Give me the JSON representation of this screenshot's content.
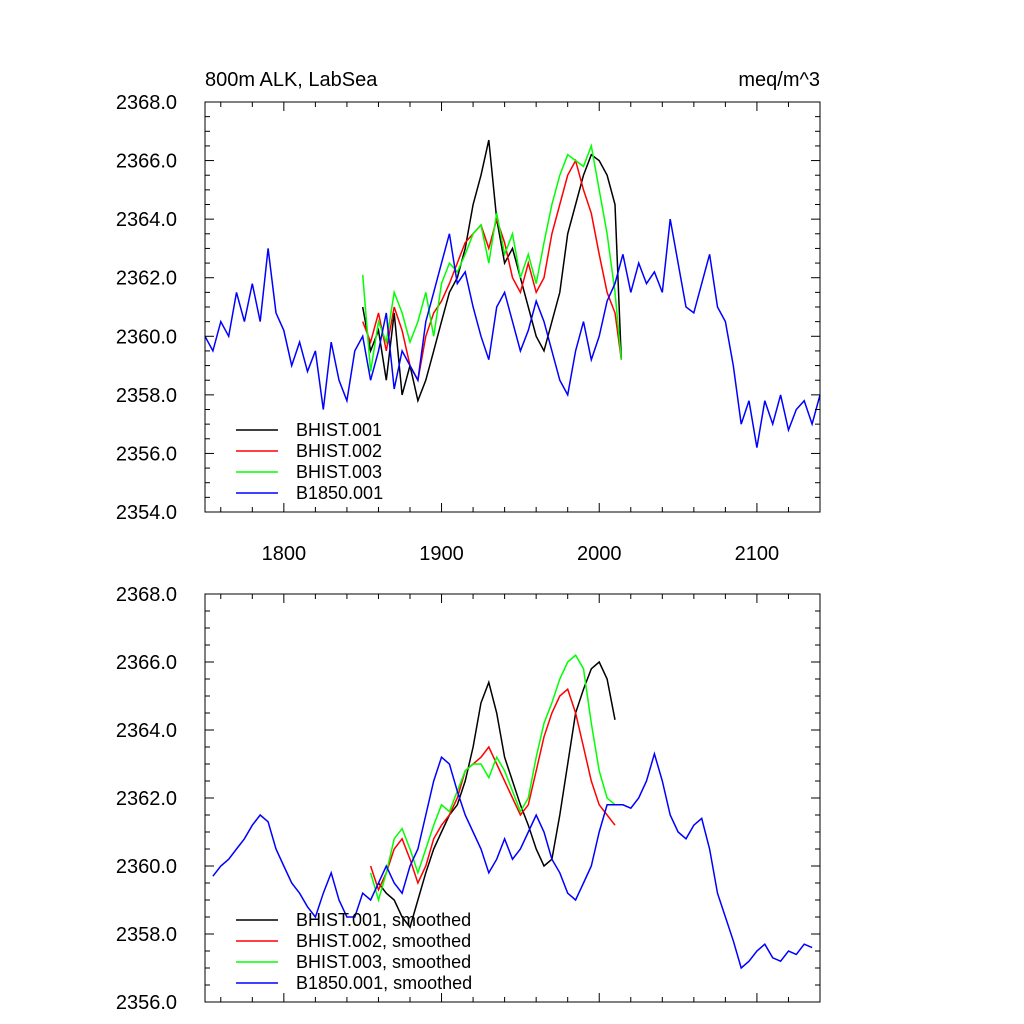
{
  "chart_data": [
    {
      "type": "line",
      "title": "800m ALK, LabSea",
      "units": "meq/m^3",
      "xlim": [
        1750,
        2140
      ],
      "ylim": [
        2354,
        2368
      ],
      "xticks": [
        1800,
        1900,
        2000,
        2100
      ],
      "yticks": [
        2354.0,
        2356.0,
        2358.0,
        2360.0,
        2362.0,
        2364.0,
        2366.0,
        2368.0
      ],
      "xtick_labels": [
        "1800",
        "1900",
        "2000",
        "2100"
      ],
      "ytick_labels": [
        "2354.0",
        "2356.0",
        "2358.0",
        "2360.0",
        "2362.0",
        "2364.0",
        "2366.0",
        "2368.0"
      ],
      "legend_position": "lower-left",
      "series": [
        {
          "name": "BHIST.001",
          "color": "#000000",
          "x": [
            1850,
            1855,
            1860,
            1865,
            1870,
            1875,
            1880,
            1885,
            1890,
            1895,
            1900,
            1905,
            1910,
            1915,
            1920,
            1925,
            1930,
            1935,
            1940,
            1945,
            1950,
            1955,
            1960,
            1965,
            1970,
            1975,
            1980,
            1985,
            1990,
            1995,
            2000,
            2005,
            2010,
            2014
          ],
          "y": [
            2361.0,
            2359.5,
            2360.2,
            2358.5,
            2360.8,
            2358.0,
            2359.0,
            2357.8,
            2358.5,
            2359.5,
            2360.5,
            2361.5,
            2362.0,
            2363.0,
            2364.5,
            2365.5,
            2366.7,
            2364.0,
            2362.5,
            2363.0,
            2362.0,
            2361.0,
            2360.0,
            2359.5,
            2360.5,
            2361.5,
            2363.5,
            2364.5,
            2365.5,
            2366.2,
            2366.0,
            2365.5,
            2364.5,
            2359.2
          ]
        },
        {
          "name": "BHIST.002",
          "color": "#ff0000",
          "x": [
            1850,
            1855,
            1860,
            1865,
            1870,
            1875,
            1880,
            1885,
            1890,
            1895,
            1900,
            1905,
            1910,
            1915,
            1920,
            1925,
            1930,
            1935,
            1940,
            1945,
            1950,
            1955,
            1960,
            1965,
            1970,
            1975,
            1980,
            1985,
            1990,
            1995,
            2000,
            2005,
            2010,
            2014
          ],
          "y": [
            2360.5,
            2359.8,
            2360.8,
            2359.5,
            2361.0,
            2360.2,
            2359.0,
            2358.5,
            2360.0,
            2360.8,
            2361.2,
            2361.8,
            2362.5,
            2363.2,
            2363.5,
            2363.8,
            2363.0,
            2364.0,
            2363.2,
            2362.0,
            2361.5,
            2362.5,
            2361.5,
            2362.0,
            2363.5,
            2364.5,
            2365.5,
            2366.0,
            2365.0,
            2364.2,
            2362.8,
            2361.5,
            2360.8,
            2359.2
          ]
        },
        {
          "name": "BHIST.003",
          "color": "#00ff00",
          "x": [
            1850,
            1855,
            1860,
            1865,
            1870,
            1875,
            1880,
            1885,
            1890,
            1895,
            1900,
            1905,
            1910,
            1915,
            1920,
            1925,
            1930,
            1935,
            1940,
            1945,
            1950,
            1955,
            1960,
            1965,
            1970,
            1975,
            1980,
            1985,
            1990,
            1995,
            2000,
            2005,
            2010,
            2014
          ],
          "y": [
            2362.1,
            2358.8,
            2360.5,
            2359.8,
            2361.5,
            2360.8,
            2359.8,
            2360.5,
            2361.5,
            2360.0,
            2361.8,
            2362.5,
            2362.2,
            2362.8,
            2363.5,
            2363.8,
            2362.5,
            2364.2,
            2362.8,
            2363.5,
            2362.0,
            2362.8,
            2361.8,
            2363.2,
            2364.5,
            2365.5,
            2366.2,
            2366.0,
            2365.8,
            2366.5,
            2365.0,
            2363.5,
            2361.5,
            2359.2
          ]
        },
        {
          "name": "B1850.001",
          "color": "#0000ff",
          "x": [
            1750,
            1755,
            1760,
            1765,
            1770,
            1775,
            1780,
            1785,
            1790,
            1795,
            1800,
            1805,
            1810,
            1815,
            1820,
            1825,
            1830,
            1835,
            1840,
            1845,
            1850,
            1855,
            1860,
            1865,
            1870,
            1875,
            1880,
            1885,
            1890,
            1895,
            1900,
            1905,
            1910,
            1915,
            1920,
            1925,
            1930,
            1935,
            1940,
            1945,
            1950,
            1955,
            1960,
            1965,
            1970,
            1975,
            1980,
            1985,
            1990,
            1995,
            2000,
            2005,
            2010,
            2015,
            2020,
            2025,
            2030,
            2035,
            2040,
            2045,
            2050,
            2055,
            2060,
            2065,
            2070,
            2075,
            2080,
            2085,
            2090,
            2095,
            2100,
            2105,
            2110,
            2115,
            2120,
            2125,
            2130,
            2135,
            2140
          ],
          "y": [
            2360.0,
            2359.5,
            2360.5,
            2360.0,
            2361.5,
            2360.5,
            2361.8,
            2360.5,
            2363.0,
            2360.8,
            2360.2,
            2359.0,
            2359.8,
            2358.8,
            2359.5,
            2357.5,
            2359.8,
            2358.5,
            2357.8,
            2359.5,
            2360.0,
            2358.5,
            2359.5,
            2360.8,
            2358.2,
            2359.5,
            2359.0,
            2358.5,
            2360.5,
            2361.5,
            2362.5,
            2363.5,
            2361.8,
            2362.2,
            2361.0,
            2360.0,
            2359.2,
            2361.0,
            2361.5,
            2360.5,
            2359.5,
            2360.2,
            2361.2,
            2360.5,
            2359.5,
            2358.5,
            2358.0,
            2359.5,
            2360.5,
            2359.2,
            2360.0,
            2361.2,
            2361.8,
            2362.8,
            2361.5,
            2362.5,
            2361.8,
            2362.2,
            2361.5,
            2364.0,
            2362.5,
            2361.0,
            2360.8,
            2361.8,
            2362.8,
            2361.0,
            2360.5,
            2359.0,
            2357.0,
            2357.8,
            2356.2,
            2357.8,
            2357.0,
            2358.0,
            2356.8,
            2357.5,
            2357.8,
            2357.0,
            2358.0
          ]
        }
      ]
    },
    {
      "type": "line",
      "title": "",
      "xlim": [
        1750,
        2140
      ],
      "ylim": [
        2356,
        2368
      ],
      "xticks": [
        1800,
        1900,
        2000,
        2100
      ],
      "yticks": [
        2356.0,
        2358.0,
        2360.0,
        2362.0,
        2364.0,
        2366.0,
        2368.0
      ],
      "ytick_labels": [
        "2356.0",
        "2358.0",
        "2360.0",
        "2362.0",
        "2364.0",
        "2366.0",
        "2368.0"
      ],
      "legend_position": "lower-left",
      "series": [
        {
          "name": "BHIST.001, smoothed",
          "color": "#000000",
          "x": [
            1860,
            1865,
            1870,
            1875,
            1880,
            1885,
            1890,
            1895,
            1900,
            1905,
            1910,
            1915,
            1920,
            1925,
            1930,
            1935,
            1940,
            1945,
            1950,
            1955,
            1960,
            1965,
            1970,
            1975,
            1980,
            1985,
            1990,
            1995,
            2000,
            2005,
            2010
          ],
          "y": [
            2359.5,
            2359.2,
            2359.0,
            2358.5,
            2358.2,
            2359.0,
            2359.8,
            2360.5,
            2361.0,
            2361.5,
            2361.8,
            2362.5,
            2363.5,
            2364.8,
            2365.4,
            2364.5,
            2363.2,
            2362.5,
            2361.8,
            2361.2,
            2360.5,
            2360.0,
            2360.2,
            2361.5,
            2363.0,
            2364.5,
            2365.2,
            2365.8,
            2366.0,
            2365.5,
            2364.3
          ]
        },
        {
          "name": "BHIST.002, smoothed",
          "color": "#ff0000",
          "x": [
            1855,
            1860,
            1865,
            1870,
            1875,
            1880,
            1885,
            1890,
            1895,
            1900,
            1905,
            1910,
            1915,
            1920,
            1925,
            1930,
            1935,
            1940,
            1945,
            1950,
            1955,
            1960,
            1965,
            1970,
            1975,
            1980,
            1985,
            1990,
            1995,
            2000,
            2005,
            2010
          ],
          "y": [
            2360.0,
            2359.3,
            2359.8,
            2360.5,
            2360.8,
            2360.2,
            2359.5,
            2360.0,
            2360.8,
            2361.2,
            2361.5,
            2362.0,
            2362.8,
            2363.0,
            2363.2,
            2363.5,
            2363.0,
            2362.5,
            2362.0,
            2361.5,
            2361.8,
            2362.8,
            2363.8,
            2364.5,
            2365.0,
            2365.2,
            2364.5,
            2363.5,
            2362.5,
            2361.8,
            2361.5,
            2361.2
          ]
        },
        {
          "name": "BHIST.003, smoothed",
          "color": "#00ff00",
          "x": [
            1855,
            1860,
            1865,
            1870,
            1875,
            1880,
            1885,
            1890,
            1895,
            1900,
            1905,
            1910,
            1915,
            1920,
            1925,
            1930,
            1935,
            1940,
            1945,
            1950,
            1955,
            1960,
            1965,
            1970,
            1975,
            1980,
            1985,
            1990,
            1995,
            2000,
            2005,
            2010
          ],
          "y": [
            2359.8,
            2359.0,
            2359.8,
            2360.8,
            2361.1,
            2360.5,
            2359.8,
            2360.5,
            2361.2,
            2361.8,
            2361.6,
            2362.2,
            2362.8,
            2363.0,
            2363.0,
            2362.6,
            2363.2,
            2362.8,
            2362.2,
            2361.6,
            2362.0,
            2363.2,
            2364.2,
            2364.8,
            2365.5,
            2366.0,
            2366.2,
            2365.8,
            2364.2,
            2362.8,
            2362.0,
            2361.8
          ]
        },
        {
          "name": "B1850.001, smoothed",
          "color": "#0000ff",
          "x": [
            1755,
            1760,
            1765,
            1770,
            1775,
            1780,
            1785,
            1790,
            1795,
            1800,
            1805,
            1810,
            1815,
            1820,
            1825,
            1830,
            1835,
            1840,
            1845,
            1850,
            1855,
            1860,
            1865,
            1870,
            1875,
            1880,
            1885,
            1890,
            1895,
            1900,
            1905,
            1910,
            1915,
            1920,
            1925,
            1930,
            1935,
            1940,
            1945,
            1950,
            1955,
            1960,
            1965,
            1970,
            1975,
            1980,
            1985,
            1990,
            1995,
            2000,
            2005,
            2010,
            2015,
            2020,
            2025,
            2030,
            2035,
            2040,
            2045,
            2050,
            2055,
            2060,
            2065,
            2070,
            2075,
            2080,
            2085,
            2090,
            2095,
            2100,
            2105,
            2110,
            2115,
            2120,
            2125,
            2130,
            2135
          ],
          "y": [
            2359.7,
            2360.0,
            2360.2,
            2360.5,
            2360.8,
            2361.2,
            2361.5,
            2361.3,
            2360.5,
            2360.0,
            2359.5,
            2359.2,
            2358.8,
            2358.5,
            2359.2,
            2359.8,
            2359.0,
            2358.5,
            2358.5,
            2359.2,
            2359.0,
            2359.5,
            2360.0,
            2359.5,
            2359.2,
            2360.0,
            2360.5,
            2361.5,
            2362.5,
            2363.2,
            2363.0,
            2362.2,
            2361.5,
            2361.0,
            2360.5,
            2359.8,
            2360.2,
            2360.8,
            2360.2,
            2360.5,
            2361.0,
            2361.5,
            2361.0,
            2360.2,
            2359.8,
            2359.2,
            2359.0,
            2359.5,
            2360.0,
            2361.0,
            2361.8,
            2361.8,
            2361.8,
            2361.7,
            2362.0,
            2362.5,
            2363.3,
            2362.5,
            2361.5,
            2361.0,
            2360.8,
            2361.2,
            2361.4,
            2360.5,
            2359.2,
            2358.5,
            2357.8,
            2357.0,
            2357.2,
            2357.5,
            2357.7,
            2357.3,
            2357.2,
            2357.5,
            2357.4,
            2357.7,
            2357.6
          ]
        }
      ]
    }
  ]
}
